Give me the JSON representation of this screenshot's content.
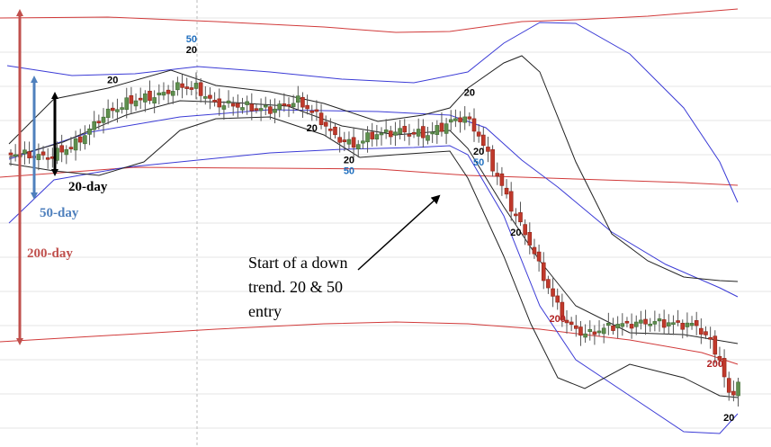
{
  "chart_data": {
    "type": "candlestick",
    "title": "",
    "xlabel": "",
    "ylabel": "",
    "grid": true,
    "colors": {
      "bull": "#5f8f4e",
      "bear": "#c0392b",
      "wick": "#555555",
      "band_20": "#222222",
      "band_50": "#3b3bd6",
      "band_200": "#d13a3a",
      "arrow_20": "#000000",
      "arrow_50": "#4f80bd",
      "arrow_200": "#c0504d",
      "grid": "#e6e6e6",
      "marker_20": "#000000",
      "marker_50": "#1f6fbf",
      "marker_200": "#b22222"
    },
    "band_labels": {
      "band_20": "20-day",
      "band_50": "50-day",
      "band_200": "200-day"
    },
    "annotation": {
      "lines": [
        "Start of a down",
        "trend. 20 & 50",
        "entry"
      ]
    },
    "markers": [
      {
        "text": "50",
        "kind": "50",
        "idx": 39
      },
      {
        "text": "20",
        "kind": "20",
        "idx": 39
      },
      {
        "text": "20",
        "kind": "20",
        "idx": 22
      },
      {
        "text": "20",
        "kind": "20",
        "idx": 65
      },
      {
        "text": "20",
        "kind": "20",
        "idx": 73
      },
      {
        "text": "50",
        "kind": "50",
        "idx": 73
      },
      {
        "text": "20",
        "kind": "20",
        "idx": 99
      },
      {
        "text": "20",
        "kind": "20",
        "idx": 101
      },
      {
        "text": "50",
        "kind": "50",
        "idx": 101
      },
      {
        "text": "20",
        "kind": "20",
        "idx": 109
      },
      {
        "text": "200",
        "kind": "200",
        "idx": 118
      },
      {
        "text": "200",
        "kind": "200",
        "idx": 152
      },
      {
        "text": "20",
        "kind": "20",
        "idx": 155
      }
    ]
  }
}
